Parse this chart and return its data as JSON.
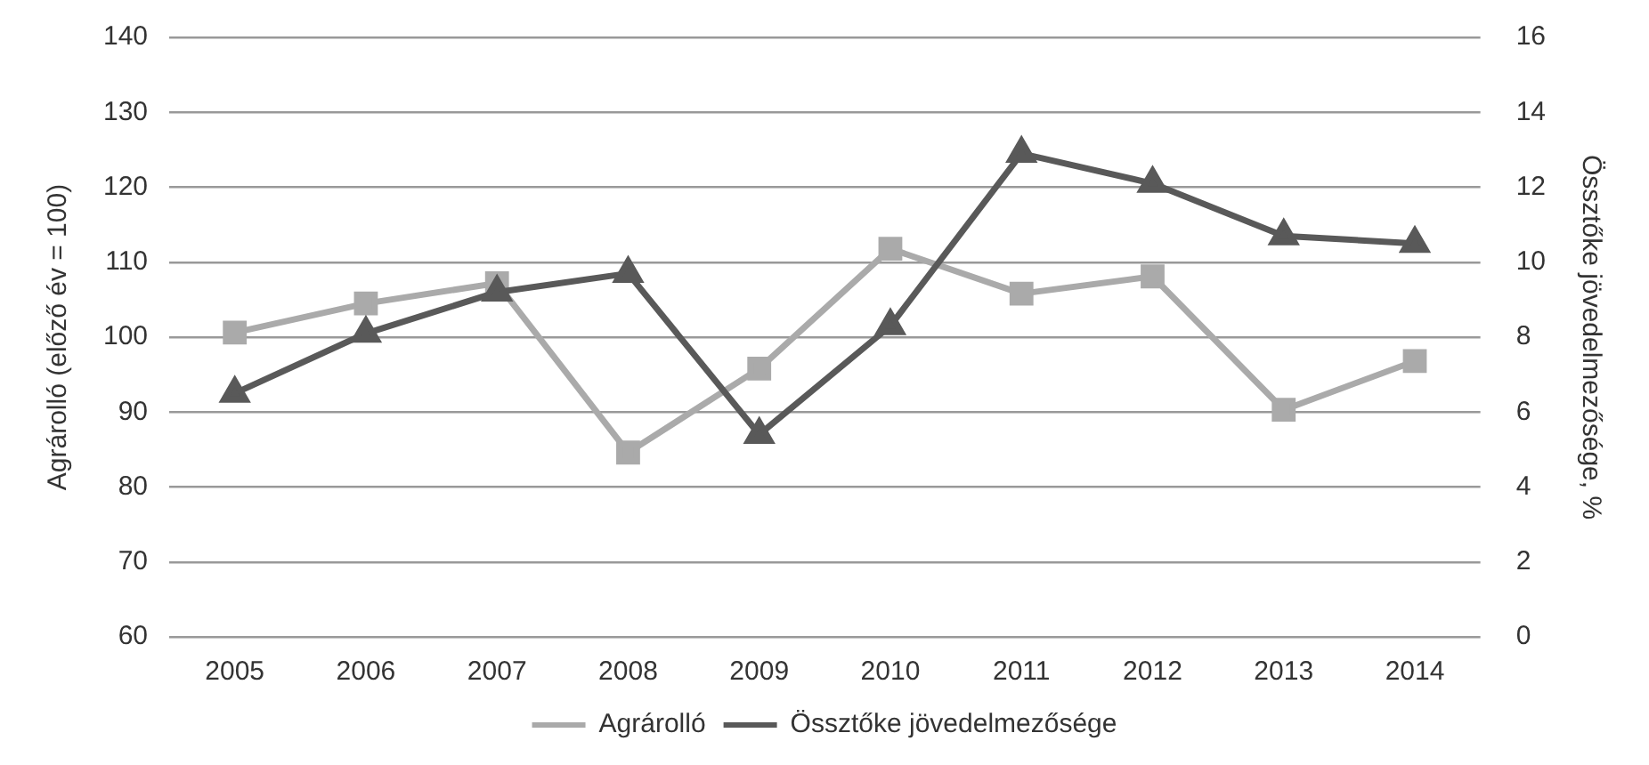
{
  "chart_data": {
    "type": "line",
    "ylabel": "Agrárolló (előző év = 100)",
    "y2label": "Össztőke jövedelmezősége, %",
    "categories": [
      "2005",
      "2006",
      "2007",
      "2008",
      "2009",
      "2010",
      "2011",
      "2012",
      "2013",
      "2014"
    ],
    "series": [
      {
        "name": "Agrárolló",
        "color": "#aaaaaa",
        "marker": "square",
        "values": [
          100.6,
          104.5,
          107.2,
          84.6,
          95.8,
          111.8,
          105.8,
          108.1,
          90.3,
          96.8
        ]
      },
      {
        "name": "Össztőke jövedelmezősége",
        "color": "#595959",
        "marker": "triangle",
        "axis": "y2",
        "values": [
          6.5,
          8.1,
          9.2,
          9.7,
          5.4,
          8.3,
          12.9,
          12.1,
          10.7,
          10.5
        ]
      }
    ],
    "ylim": [
      60,
      140
    ],
    "yticks": [
      60,
      70,
      80,
      90,
      100,
      110,
      120,
      130,
      140
    ],
    "y2lim": [
      0,
      16
    ],
    "y2ticks": [
      0,
      2,
      4,
      6,
      8,
      10,
      12,
      14,
      16
    ],
    "grid": "y",
    "legend": "bottom"
  }
}
